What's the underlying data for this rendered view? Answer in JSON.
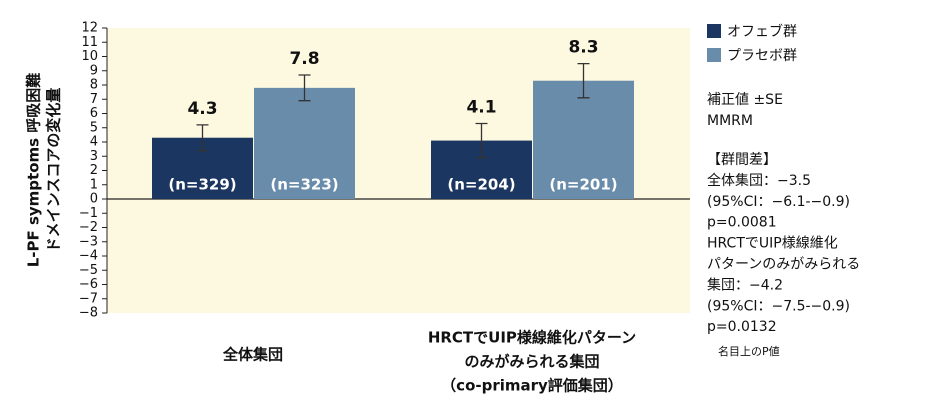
{
  "chart_data": {
    "type": "bar",
    "ylabel": [
      "L-PF symptoms 呼吸困難",
      "ドメインスコアの変化量"
    ],
    "categories": [
      [
        "全体集団"
      ],
      [
        "HRCTでUIP様線維化パターン",
        "のみがみられる集団",
        "（co-primary評価集団）"
      ]
    ],
    "series": [
      {
        "name": "オフェブ群",
        "color": "#1b3660",
        "values": [
          4.3,
          4.1
        ],
        "errors": [
          0.9,
          1.2
        ],
        "n_labels": [
          "(n=329)",
          "(n=204)"
        ]
      },
      {
        "name": "プラセボ群",
        "color": "#6a8cab",
        "values": [
          7.8,
          8.3
        ],
        "errors": [
          0.9,
          1.2
        ],
        "n_labels": [
          "(n=323)",
          "(n=201)"
        ]
      }
    ],
    "ylim": [
      -8,
      12
    ],
    "yticks": [
      {
        "value": -8,
        "label": "−8"
      },
      {
        "value": -7,
        "label": "−7"
      },
      {
        "value": -6,
        "label": "−6"
      },
      {
        "value": -5,
        "label": "−5"
      },
      {
        "value": -4,
        "label": "−4"
      },
      {
        "value": -3,
        "label": "−3"
      },
      {
        "value": -2,
        "label": "−2"
      },
      {
        "value": -1,
        "label": "−1"
      },
      0,
      1,
      2,
      3,
      4,
      5,
      6,
      7,
      8,
      9,
      10,
      11,
      12
    ],
    "background": "#fdf8e0",
    "method_notes": [
      "補正値 ±SE",
      "MMRM"
    ],
    "difference_notes": [
      "【群間差】",
      "全体集団：−3.5",
      "(95%CI：−6.1-−0.9)",
      "p=0.0081",
      "HRCTでUIP様線維化",
      "パターンのみがみられる",
      "集団：−4.2",
      "(95%CI：−7.5-−0.9)",
      "p=0.0132"
    ],
    "footnote": "名目上のP値"
  }
}
